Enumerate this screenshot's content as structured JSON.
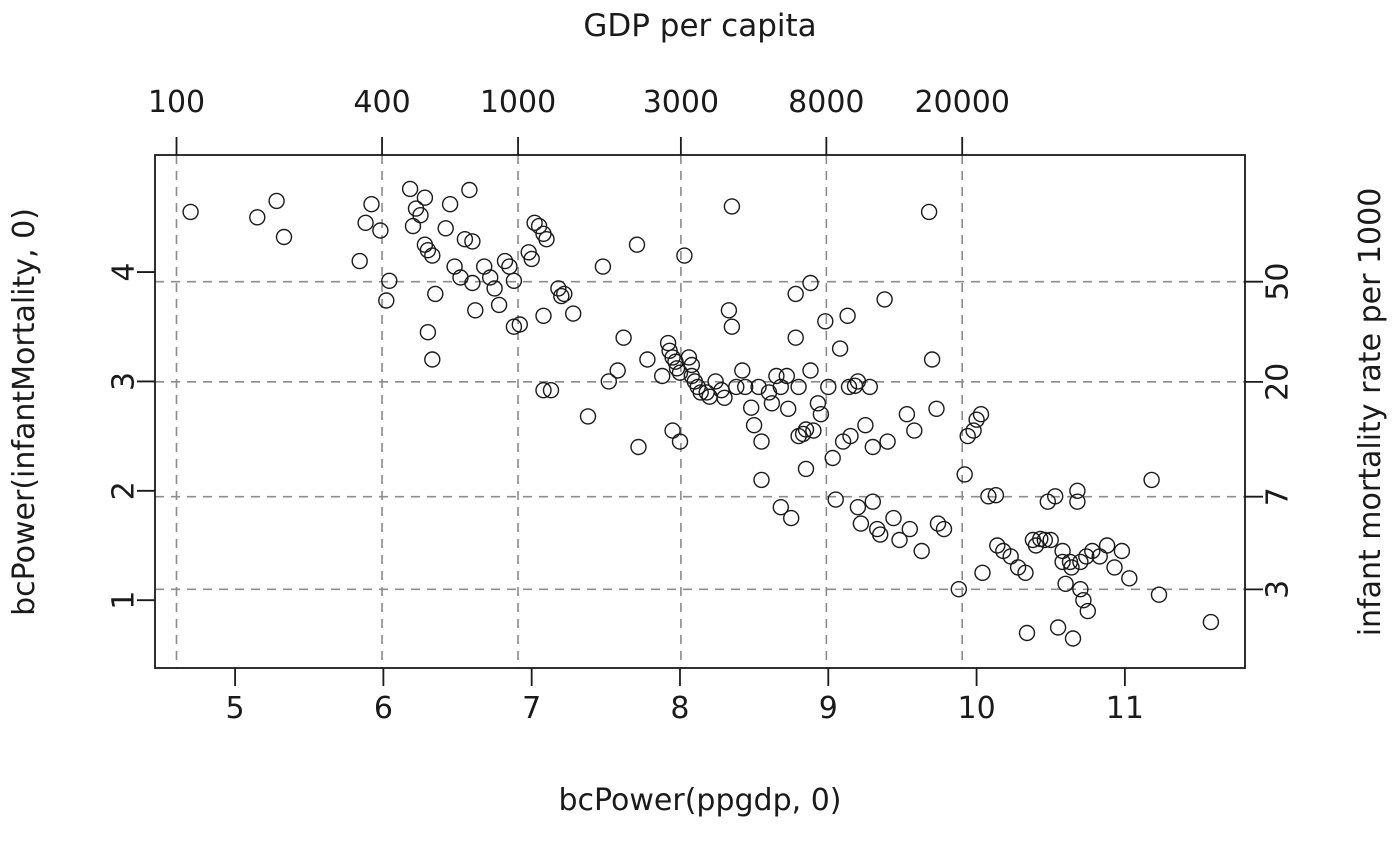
{
  "chart_data": {
    "type": "scatter",
    "top_axis_title": "GDP per capita",
    "xlabel": "bcPower(ppgdp, 0)",
    "ylabel_left": "bcPower(infantMortality, 0)",
    "ylabel_right": "infant mortality rate per 1000",
    "xlim": [
      4.46,
      11.81
    ],
    "ylim": [
      0.38,
      5.07
    ],
    "bottom_ticks": [
      5,
      6,
      7,
      8,
      9,
      10,
      11
    ],
    "left_ticks": [
      1,
      2,
      3,
      4
    ],
    "top_ticks": {
      "labels": [
        "100",
        "400",
        "1000",
        "3000",
        "8000",
        "20000"
      ],
      "values": [
        4.605,
        5.991,
        6.908,
        8.006,
        8.987,
        9.903
      ]
    },
    "right_ticks": {
      "labels": [
        "3",
        "7",
        "20",
        "50"
      ],
      "values": [
        1.099,
        1.946,
        2.996,
        3.912
      ]
    },
    "grid": {
      "style": "dashed",
      "color": "#8c8c8c",
      "at": "top and right tick positions"
    },
    "point_style": {
      "shape": "open-circle",
      "color": "#1a1a1a"
    },
    "points": [
      [
        4.7,
        4.55
      ],
      [
        5.15,
        4.5
      ],
      [
        5.28,
        4.65
      ],
      [
        5.33,
        4.32
      ],
      [
        5.84,
        4.1
      ],
      [
        5.88,
        4.45
      ],
      [
        5.92,
        4.62
      ],
      [
        5.98,
        4.38
      ],
      [
        6.02,
        3.74
      ],
      [
        6.04,
        3.92
      ],
      [
        6.18,
        4.76
      ],
      [
        6.2,
        4.42
      ],
      [
        6.22,
        4.58
      ],
      [
        6.25,
        4.52
      ],
      [
        6.28,
        4.68
      ],
      [
        6.28,
        4.25
      ],
      [
        6.3,
        4.2
      ],
      [
        6.33,
        4.15
      ],
      [
        6.35,
        3.8
      ],
      [
        6.3,
        3.45
      ],
      [
        6.33,
        3.2
      ],
      [
        6.42,
        4.4
      ],
      [
        6.45,
        4.62
      ],
      [
        6.48,
        4.05
      ],
      [
        6.52,
        3.95
      ],
      [
        6.55,
        4.3
      ],
      [
        6.58,
        4.75
      ],
      [
        6.6,
        4.28
      ],
      [
        6.6,
        3.9
      ],
      [
        6.62,
        3.65
      ],
      [
        6.68,
        4.05
      ],
      [
        6.72,
        3.95
      ],
      [
        6.75,
        3.85
      ],
      [
        6.78,
        3.7
      ],
      [
        6.82,
        4.1
      ],
      [
        6.85,
        4.05
      ],
      [
        6.88,
        3.92
      ],
      [
        6.88,
        3.5
      ],
      [
        6.92,
        3.52
      ],
      [
        6.98,
        4.18
      ],
      [
        7.0,
        4.12
      ],
      [
        7.02,
        4.45
      ],
      [
        7.05,
        4.42
      ],
      [
        7.08,
        4.35
      ],
      [
        7.1,
        4.3
      ],
      [
        7.08,
        3.6
      ],
      [
        7.08,
        2.92
      ],
      [
        7.13,
        2.92
      ],
      [
        7.18,
        3.85
      ],
      [
        7.2,
        3.78
      ],
      [
        7.22,
        3.8
      ],
      [
        7.28,
        3.62
      ],
      [
        7.38,
        2.68
      ],
      [
        7.48,
        4.05
      ],
      [
        7.52,
        3.0
      ],
      [
        7.58,
        3.1
      ],
      [
        7.62,
        3.4
      ],
      [
        7.72,
        2.4
      ],
      [
        7.78,
        3.2
      ],
      [
        7.71,
        4.25
      ],
      [
        7.88,
        3.05
      ],
      [
        7.92,
        3.35
      ],
      [
        7.93,
        3.28
      ],
      [
        7.95,
        3.22
      ],
      [
        7.97,
        3.18
      ],
      [
        7.98,
        3.12
      ],
      [
        8.0,
        3.08
      ],
      [
        7.95,
        2.55
      ],
      [
        8.0,
        2.45
      ],
      [
        8.03,
        4.15
      ],
      [
        8.06,
        3.22
      ],
      [
        8.08,
        3.15
      ],
      [
        8.08,
        3.05
      ],
      [
        8.1,
        3.0
      ],
      [
        8.12,
        2.95
      ],
      [
        8.14,
        2.9
      ],
      [
        8.18,
        2.9
      ],
      [
        8.2,
        2.86
      ],
      [
        8.24,
        3.0
      ],
      [
        8.28,
        2.92
      ],
      [
        8.3,
        2.85
      ],
      [
        8.33,
        3.65
      ],
      [
        8.35,
        3.5
      ],
      [
        8.38,
        2.95
      ],
      [
        8.42,
        3.1
      ],
      [
        8.44,
        2.95
      ],
      [
        8.48,
        2.76
      ],
      [
        8.5,
        2.6
      ],
      [
        8.53,
        2.95
      ],
      [
        8.55,
        2.45
      ],
      [
        8.55,
        2.1
      ],
      [
        8.35,
        4.6
      ],
      [
        8.6,
        2.9
      ],
      [
        8.62,
        2.8
      ],
      [
        8.65,
        3.05
      ],
      [
        8.68,
        2.95
      ],
      [
        8.68,
        1.85
      ],
      [
        8.72,
        3.05
      ],
      [
        8.73,
        2.75
      ],
      [
        8.75,
        1.75
      ],
      [
        8.78,
        3.8
      ],
      [
        8.78,
        3.4
      ],
      [
        8.8,
        2.95
      ],
      [
        8.8,
        2.5
      ],
      [
        8.83,
        2.52
      ],
      [
        8.85,
        2.56
      ],
      [
        8.85,
        2.2
      ],
      [
        8.88,
        3.9
      ],
      [
        8.88,
        3.1
      ],
      [
        8.9,
        2.55
      ],
      [
        8.93,
        2.8
      ],
      [
        8.95,
        2.7
      ],
      [
        8.98,
        3.55
      ],
      [
        9.0,
        2.95
      ],
      [
        9.03,
        2.3
      ],
      [
        9.05,
        1.92
      ],
      [
        9.08,
        3.3
      ],
      [
        9.1,
        2.45
      ],
      [
        9.13,
        3.6
      ],
      [
        9.14,
        2.95
      ],
      [
        9.15,
        2.5
      ],
      [
        9.18,
        2.96
      ],
      [
        9.2,
        3.0
      ],
      [
        9.2,
        1.85
      ],
      [
        9.22,
        1.7
      ],
      [
        9.25,
        2.6
      ],
      [
        9.28,
        2.95
      ],
      [
        9.3,
        2.4
      ],
      [
        9.3,
        1.9
      ],
      [
        9.33,
        1.65
      ],
      [
        9.35,
        1.6
      ],
      [
        9.38,
        3.75
      ],
      [
        9.4,
        2.45
      ],
      [
        9.44,
        1.75
      ],
      [
        9.48,
        1.55
      ],
      [
        9.53,
        2.7
      ],
      [
        9.55,
        1.65
      ],
      [
        9.58,
        2.55
      ],
      [
        9.63,
        1.45
      ],
      [
        9.68,
        4.55
      ],
      [
        9.7,
        3.2
      ],
      [
        9.73,
        2.75
      ],
      [
        9.74,
        1.7
      ],
      [
        9.78,
        1.65
      ],
      [
        9.88,
        1.1
      ],
      [
        9.92,
        2.15
      ],
      [
        9.94,
        2.5
      ],
      [
        9.98,
        2.55
      ],
      [
        10.0,
        2.65
      ],
      [
        10.03,
        2.7
      ],
      [
        10.04,
        1.25
      ],
      [
        10.08,
        1.95
      ],
      [
        10.13,
        1.96
      ],
      [
        10.14,
        1.5
      ],
      [
        10.18,
        1.45
      ],
      [
        10.23,
        1.4
      ],
      [
        10.28,
        1.3
      ],
      [
        10.33,
        1.25
      ],
      [
        10.34,
        0.7
      ],
      [
        10.38,
        1.55
      ],
      [
        10.4,
        1.5
      ],
      [
        10.43,
        1.56
      ],
      [
        10.46,
        1.55
      ],
      [
        10.48,
        1.9
      ],
      [
        10.5,
        1.55
      ],
      [
        10.53,
        1.95
      ],
      [
        10.55,
        0.75
      ],
      [
        10.58,
        1.45
      ],
      [
        10.58,
        1.35
      ],
      [
        10.6,
        1.15
      ],
      [
        10.63,
        1.35
      ],
      [
        10.64,
        1.3
      ],
      [
        10.65,
        0.65
      ],
      [
        10.68,
        2.0
      ],
      [
        10.68,
        1.9
      ],
      [
        10.7,
        1.35
      ],
      [
        10.7,
        1.1
      ],
      [
        10.72,
        1.0
      ],
      [
        10.74,
        1.4
      ],
      [
        10.75,
        0.9
      ],
      [
        10.78,
        1.45
      ],
      [
        10.83,
        1.4
      ],
      [
        10.88,
        1.5
      ],
      [
        10.93,
        1.3
      ],
      [
        10.98,
        1.45
      ],
      [
        11.03,
        1.2
      ],
      [
        11.18,
        2.1
      ],
      [
        11.23,
        1.05
      ],
      [
        11.58,
        0.8
      ]
    ]
  }
}
